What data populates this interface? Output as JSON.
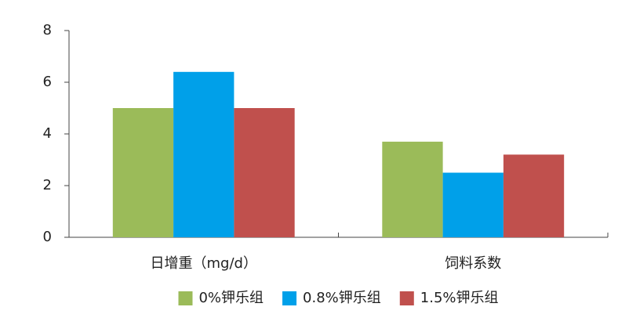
{
  "chart_data": {
    "type": "bar",
    "categories": [
      "日增重（mg/d）",
      "饲料系数"
    ],
    "series": [
      {
        "name": "0%钾乐组",
        "color": "#9bbb59",
        "values": [
          5.0,
          3.7
        ]
      },
      {
        "name": "0.8%钾乐组",
        "color": "#00a0e9",
        "values": [
          6.4,
          2.5
        ]
      },
      {
        "name": "1.5%钾乐组",
        "color": "#c0504d",
        "values": [
          5.0,
          3.2
        ]
      }
    ],
    "ylim": [
      0,
      8
    ],
    "yticks": [
      0,
      2,
      4,
      6,
      8
    ],
    "grid": false,
    "legend": "bottom"
  }
}
